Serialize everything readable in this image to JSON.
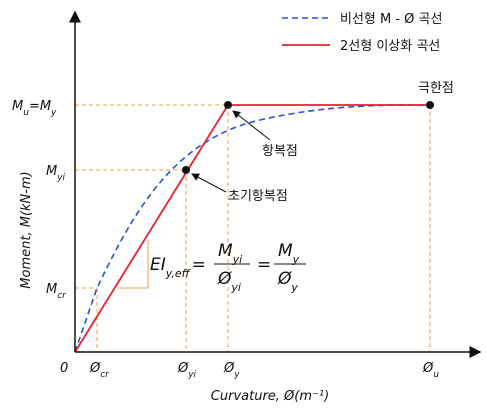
{
  "legend": [
    "비선형 M - Ø 곡선",
    "2선형 이상화 곡선"
  ],
  "y_axis": {
    "title": "Moment, M(kN-m)",
    "labels": [
      [
        "M",
        "u",
        "=M",
        "y"
      ],
      [
        "M",
        "yi"
      ],
      [
        "M",
        "cr"
      ]
    ]
  },
  "x_axis": {
    "title": "Curvature, Ø(m⁻¹)",
    "origin": "0",
    "labels": [
      [
        "Ø",
        "cr"
      ],
      [
        "Ø",
        "yi"
      ],
      [
        "Ø",
        "y"
      ],
      [
        "Ø",
        "u"
      ]
    ]
  },
  "formula": {
    "lhs": [
      "EI",
      "y,eff"
    ],
    "eq": "=",
    "frac1": {
      "num": [
        "M",
        "yi"
      ],
      "den": [
        "Ø",
        "yi"
      ]
    },
    "frac2": {
      "num": [
        "M",
        "y"
      ],
      "den": [
        "Ø",
        "y"
      ]
    }
  },
  "annotations": [
    "극한점",
    "항복점",
    "초기항복점"
  ]
}
